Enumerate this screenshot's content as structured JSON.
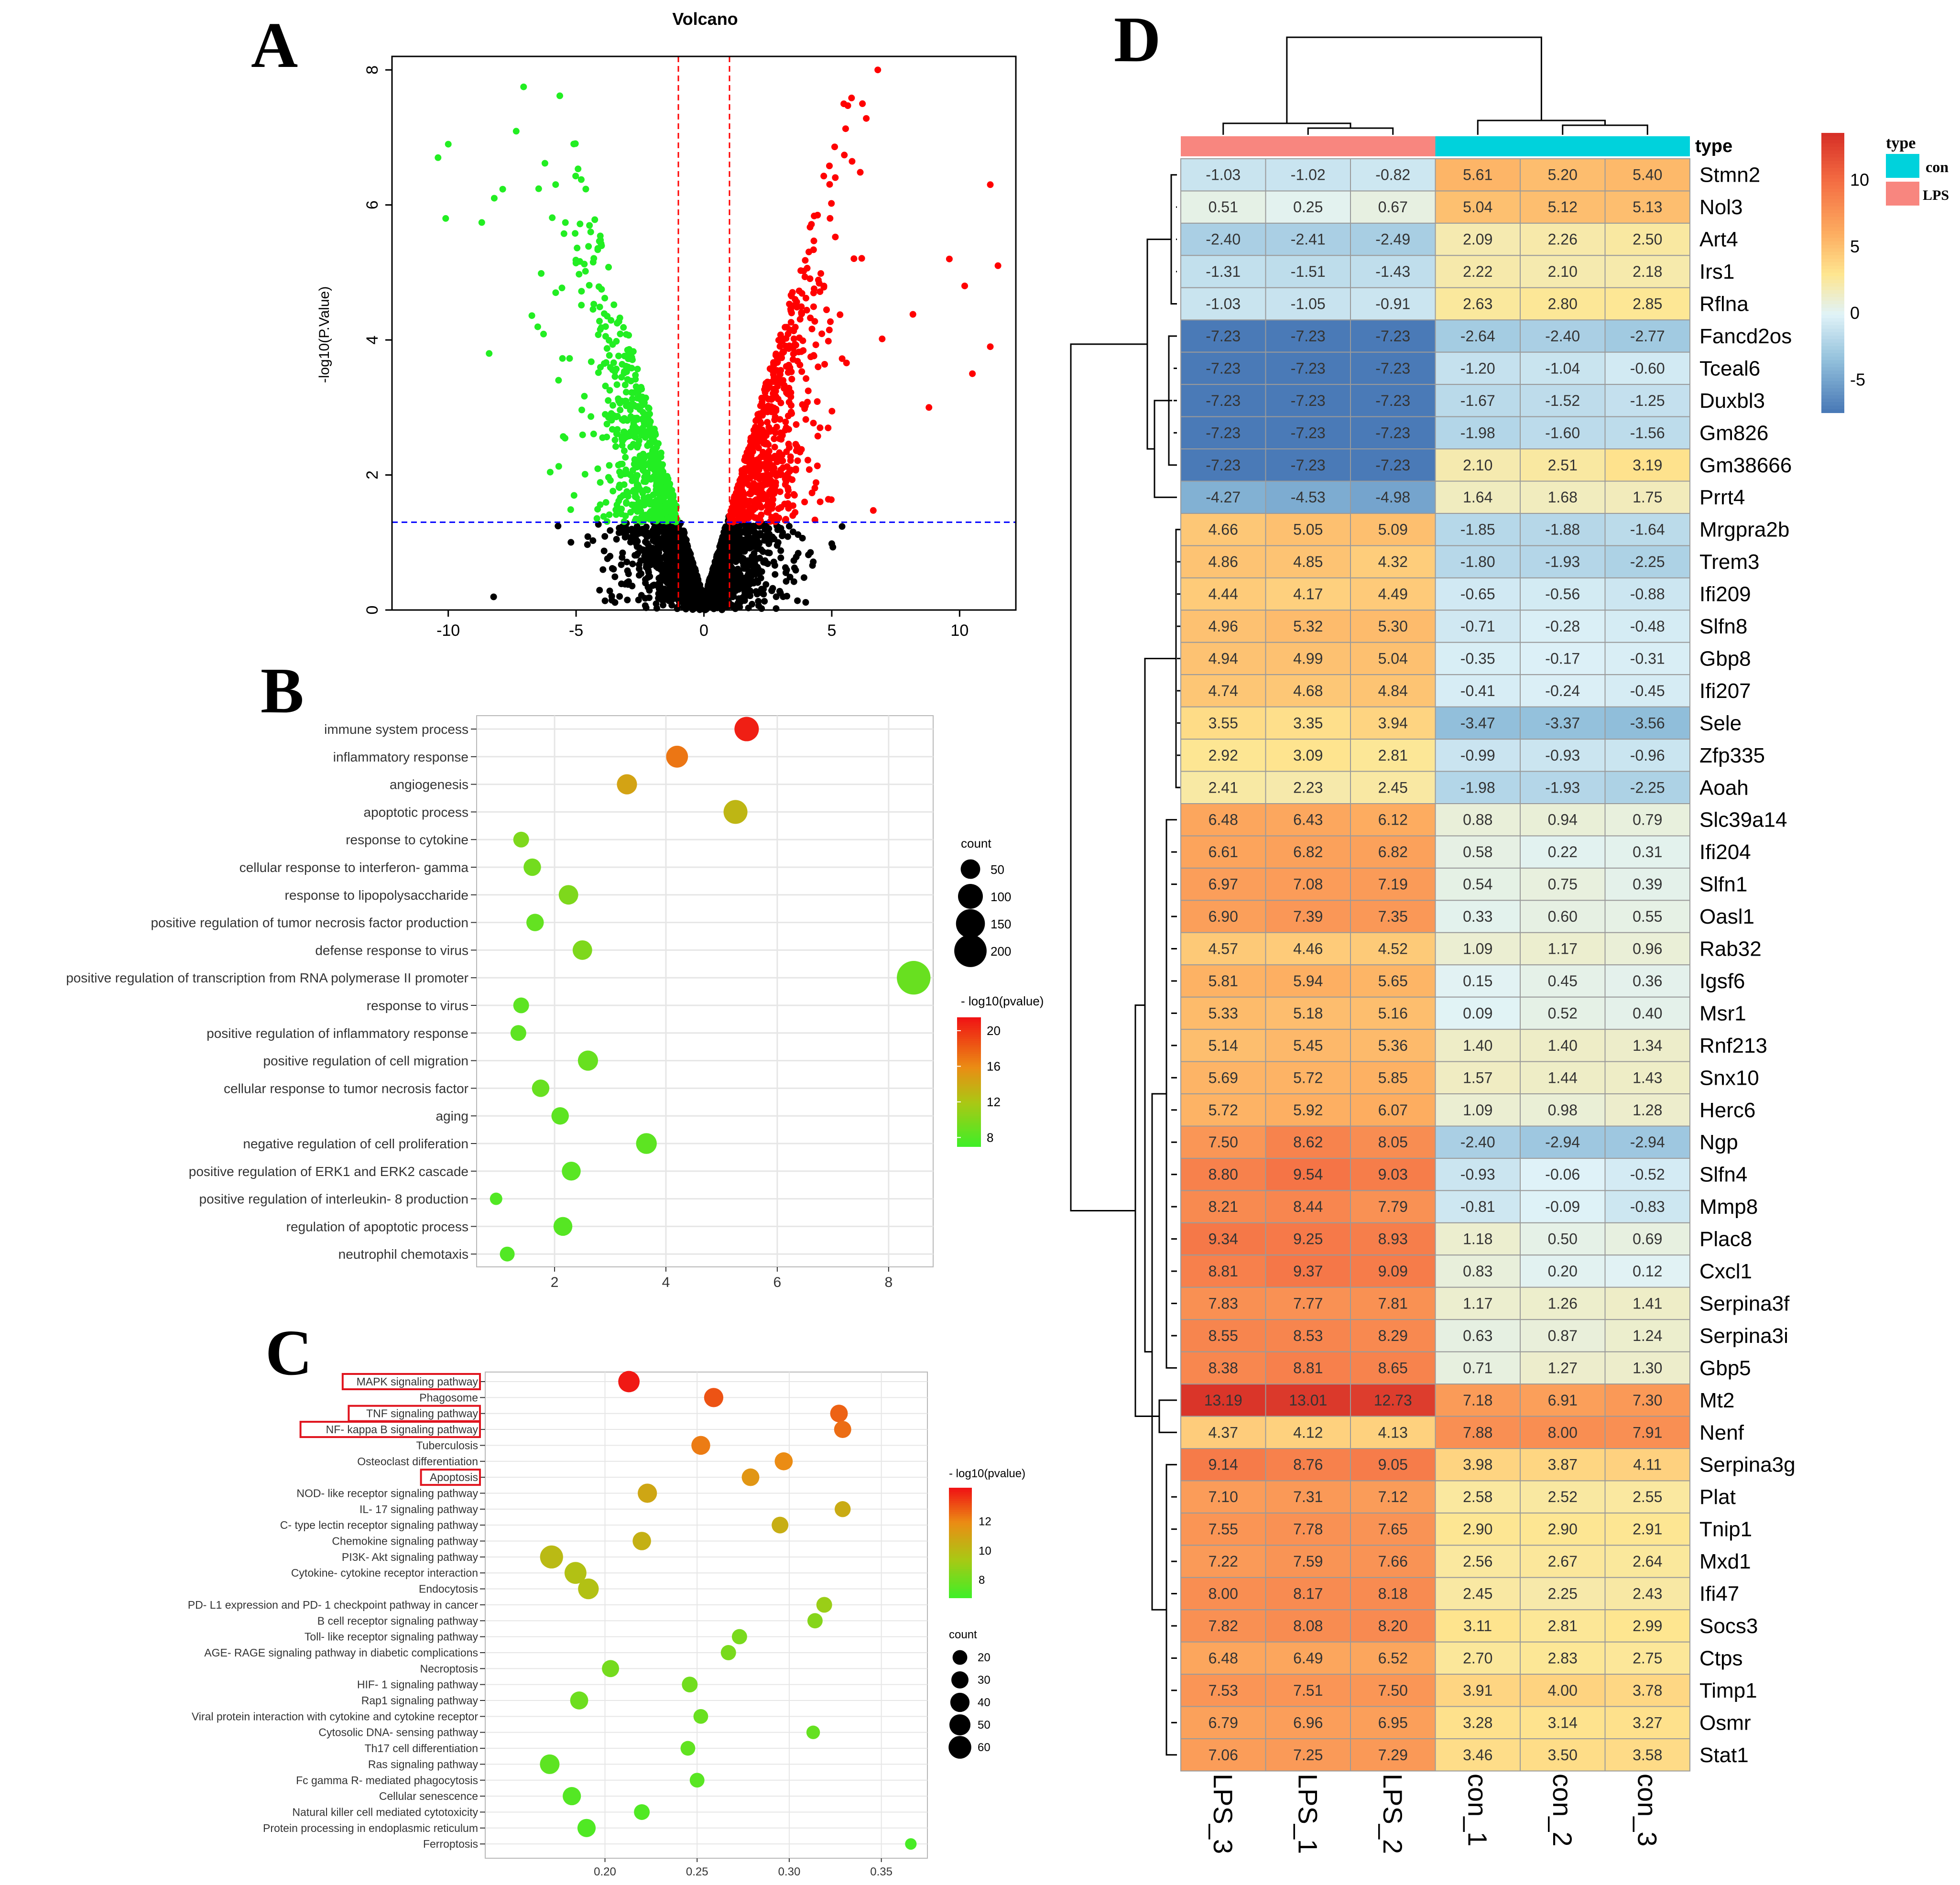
{
  "panels": {
    "a": {
      "letter": "A"
    },
    "b": {
      "letter": "B"
    },
    "c": {
      "letter": "C"
    },
    "d": {
      "letter": "D"
    }
  },
  "colors": {
    "up": "#ff0000",
    "down": "#22ee22",
    "ns": "#000000",
    "vline": "#ff0000",
    "hline": "#0000ff",
    "con": "#00d2dc",
    "lps": "#f8867f",
    "grid": "#e6e6e6",
    "panelBg": "#ffffff",
    "highlight": "#e0141e"
  },
  "chart_data": [
    {
      "id": "volcano",
      "type": "scatter",
      "title": "Volcano",
      "xlabel": "",
      "ylabel": "-log10(P.Value)",
      "xlim": [
        -12.2,
        12.2
      ],
      "ylim": [
        0,
        8.2
      ],
      "xticks": [
        -10,
        -5,
        0,
        5,
        10
      ],
      "yticks": [
        0,
        2,
        4,
        6,
        8
      ],
      "fc_threshold": [
        -1,
        1
      ],
      "p_threshold": 1.3,
      "series": [
        {
          "name": "down",
          "color": "#22ee22",
          "description": "log2FC < -1 and P < 0.05"
        },
        {
          "name": "up",
          "color": "#ff0000",
          "description": "log2FC > 1 and P < 0.05"
        },
        {
          "name": "ns",
          "color": "#000000",
          "description": "not significant"
        }
      ]
    },
    {
      "id": "go_bubble",
      "type": "scatter",
      "xlim": [
        0.6,
        8.8
      ],
      "xticks": [
        2,
        4,
        6,
        8
      ],
      "categories": [
        "immune system process",
        "inflammatory response",
        "angiogenesis",
        "apoptotic process",
        "response to cytokine",
        "cellular response to interferon- gamma",
        "response to lipopolysaccharide",
        "positive regulation of tumor necrosis factor production",
        "defense response to virus",
        "positive regulation of transcription from RNA polymerase II promoter",
        "response to virus",
        "positive regulation of inflammatory response",
        "positive regulation of cell migration",
        "cellular response to tumor necrosis factor",
        "aging",
        "negative regulation of cell proliferation",
        "positive regulation of ERK1 and ERK2 cascade",
        "positive regulation of interleukin- 8 production",
        "regulation of apoptotic process",
        "neutrophil chemotaxis"
      ],
      "x": [
        5.45,
        4.2,
        3.3,
        5.25,
        1.4,
        1.6,
        2.25,
        1.65,
        2.5,
        8.45,
        1.4,
        1.35,
        2.6,
        1.75,
        2.1,
        3.65,
        2.3,
        0.95,
        2.15,
        1.15
      ],
      "count": [
        95,
        70,
        55,
        90,
        25,
        35,
        50,
        35,
        50,
        220,
        25,
        25,
        55,
        35,
        35,
        60,
        45,
        10,
        45,
        20
      ],
      "neglog10p": [
        21,
        17,
        14.5,
        13.2,
        10,
        9.5,
        10,
        8.8,
        10,
        9,
        8.5,
        8.5,
        9,
        9,
        8.5,
        8.5,
        8.3,
        8,
        8.2,
        8
      ],
      "size_legend": {
        "title": "count",
        "values": [
          50,
          100,
          150,
          200
        ]
      },
      "color_legend": {
        "title": "- log10(pvalue)",
        "ticks": [
          8,
          12,
          16,
          20
        ],
        "range": [
          7,
          21.5
        ]
      }
    },
    {
      "id": "kegg_bubble",
      "type": "scatter",
      "xlim": [
        0.135,
        0.375
      ],
      "xticks": [
        0.2,
        0.25,
        0.3,
        0.35
      ],
      "xtick_labels": [
        "0.20",
        "0.25",
        "0.30",
        "0.35"
      ],
      "categories": [
        "MAPK signaling pathway",
        "Phagosome",
        "TNF signaling pathway",
        "NF- kappa B signaling pathway",
        "Tuberculosis",
        "Osteoclast differentiation",
        "Apoptosis",
        "NOD- like receptor signaling pathway",
        "IL- 17 signaling pathway",
        "C- type lectin receptor signaling pathway",
        "Chemokine signaling pathway",
        "PI3K- Akt signaling pathway",
        "Cytokine- cytokine receptor interaction",
        "Endocytosis",
        "PD- L1 expression and PD- 1 checkpoint pathway in cancer",
        "B cell receptor signaling pathway",
        "Toll- like receptor signaling pathway",
        "AGE- RAGE signaling pathway in diabetic complications",
        "Necroptosis",
        "HIF- 1 signaling pathway",
        "Rap1 signaling pathway",
        "Viral protein interaction with cytokine and cytokine receptor",
        "Cytosolic DNA- sensing pathway",
        "Th17 cell differentiation",
        "Ras signaling pathway",
        "Fc gamma R- mediated phagocytosis",
        "Cellular senescence",
        "Natural killer cell mediated cytotoxicity",
        "Protein processing in endoplasmic reticulum",
        "Ferroptosis"
      ],
      "highlighted": [
        "MAPK signaling pathway",
        "TNF signaling pathway",
        "NF- kappa B signaling pathway",
        "Apoptosis"
      ],
      "x": [
        0.213,
        0.259,
        0.327,
        0.329,
        0.252,
        0.297,
        0.279,
        0.223,
        0.329,
        0.295,
        0.22,
        0.171,
        0.184,
        0.191,
        0.319,
        0.314,
        0.273,
        0.267,
        0.203,
        0.246,
        0.186,
        0.252,
        0.313,
        0.245,
        0.17,
        0.25,
        0.182,
        0.22,
        0.19,
        0.366
      ],
      "count": [
        52,
        40,
        32,
        30,
        38,
        34,
        32,
        40,
        25,
        28,
        36,
        62,
        55,
        48,
        24,
        22,
        22,
        22,
        30,
        24,
        34,
        20,
        16,
        20,
        42,
        20,
        35,
        24,
        35,
        10
      ],
      "neglog10p": [
        14.2,
        13.1,
        12.8,
        12.6,
        12.3,
        12,
        11.6,
        10.9,
        10.7,
        10.6,
        10.5,
        10.1,
        9.8,
        9.8,
        9.1,
        8.6,
        8.3,
        8.3,
        8.2,
        8.1,
        8.0,
        7.9,
        7.8,
        7.7,
        7.6,
        7.5,
        7.4,
        7.3,
        7.3,
        7.1
      ],
      "size_legend": {
        "title": "count",
        "values": [
          20,
          30,
          40,
          50,
          60
        ]
      },
      "color_legend": {
        "title": "- log10(pvalue)",
        "ticks": [
          8,
          10,
          12
        ],
        "range": [
          6.8,
          14.3
        ]
      }
    },
    {
      "id": "heatmap",
      "type": "heatmap",
      "columns": [
        "LPS_3",
        "LPS_1",
        "LPS_2",
        "con_1",
        "con_2",
        "con_3"
      ],
      "column_types": [
        "LPS",
        "LPS",
        "LPS",
        "con",
        "con",
        "con"
      ],
      "annotation_title": "type",
      "legend": {
        "ticks": [
          10,
          5,
          0,
          -5
        ],
        "range": [
          -7.5,
          13.5
        ],
        "type_title": "type",
        "type_labels": [
          "con",
          "LPS"
        ]
      },
      "rows": [
        "Stmn2",
        "Nol3",
        "Art4",
        "Irs1",
        "Rflna",
        "Fancd2os",
        "Tceal6",
        "Duxbl3",
        "Gm826",
        "Gm38666",
        "Prrt4",
        "Mrgpra2b",
        "Trem3",
        "Ifi209",
        "Slfn8",
        "Gbp8",
        "Ifi207",
        "Sele",
        "Zfp335",
        "Aoah",
        "Slc39a14",
        "Ifi204",
        "Slfn1",
        "Oasl1",
        "Rab32",
        "Igsf6",
        "Msr1",
        "Rnf213",
        "Snx10",
        "Herc6",
        "Ngp",
        "Slfn4",
        "Mmp8",
        "Plac8",
        "Cxcl1",
        "Serpina3f",
        "Serpina3i",
        "Gbp5",
        "Mt2",
        "Nenf",
        "Serpina3g",
        "Plat",
        "Tnip1",
        "Mxd1",
        "Ifi47",
        "Socs3",
        "Ctps",
        "Timp1",
        "Osmr",
        "Stat1"
      ],
      "values": [
        [
          "-1.03",
          "-1.02",
          "-0.82",
          "5.61",
          "5.20",
          "5.40"
        ],
        [
          "0.51",
          "0.25",
          "0.67",
          "5.04",
          "5.12",
          "5.13"
        ],
        [
          "-2.40",
          "-2.41",
          "-2.49",
          "2.09",
          "2.26",
          "2.50"
        ],
        [
          "-1.31",
          "-1.51",
          "-1.43",
          "2.22",
          "2.10",
          "2.18"
        ],
        [
          "-1.03",
          "-1.05",
          "-0.91",
          "2.63",
          "2.80",
          "2.85"
        ],
        [
          "-7.23",
          "-7.23",
          "-7.23",
          "-2.64",
          "-2.40",
          "-2.77"
        ],
        [
          "-7.23",
          "-7.23",
          "-7.23",
          "-1.20",
          "-1.04",
          "-0.60"
        ],
        [
          "-7.23",
          "-7.23",
          "-7.23",
          "-1.67",
          "-1.52",
          "-1.25"
        ],
        [
          "-7.23",
          "-7.23",
          "-7.23",
          "-1.98",
          "-1.60",
          "-1.56"
        ],
        [
          "-7.23",
          "-7.23",
          "-7.23",
          "2.10",
          "2.51",
          "3.19"
        ],
        [
          "-4.27",
          "-4.53",
          "-4.98",
          "1.64",
          "1.68",
          "1.75"
        ],
        [
          "4.66",
          "5.05",
          "5.09",
          "-1.85",
          "-1.88",
          "-1.64"
        ],
        [
          "4.86",
          "4.85",
          "4.32",
          "-1.80",
          "-1.93",
          "-2.25"
        ],
        [
          "4.44",
          "4.17",
          "4.49",
          "-0.65",
          "-0.56",
          "-0.88"
        ],
        [
          "4.96",
          "5.32",
          "5.30",
          "-0.71",
          "-0.28",
          "-0.48"
        ],
        [
          "4.94",
          "4.99",
          "5.04",
          "-0.35",
          "-0.17",
          "-0.31"
        ],
        [
          "4.74",
          "4.68",
          "4.84",
          "-0.41",
          "-0.24",
          "-0.45"
        ],
        [
          "3.55",
          "3.35",
          "3.94",
          "-3.47",
          "-3.37",
          "-3.56"
        ],
        [
          "2.92",
          "3.09",
          "2.81",
          "-0.99",
          "-0.93",
          "-0.96"
        ],
        [
          "2.41",
          "2.23",
          "2.45",
          "-1.98",
          "-1.93",
          "-2.25"
        ],
        [
          "6.48",
          "6.43",
          "6.12",
          "0.88",
          "0.94",
          "0.79"
        ],
        [
          "6.61",
          "6.82",
          "6.82",
          "0.58",
          "0.22",
          "0.31"
        ],
        [
          "6.97",
          "7.08",
          "7.19",
          "0.54",
          "0.75",
          "0.39"
        ],
        [
          "6.90",
          "7.39",
          "7.35",
          "0.33",
          "0.60",
          "0.55"
        ],
        [
          "4.57",
          "4.46",
          "4.52",
          "1.09",
          "1.17",
          "0.96"
        ],
        [
          "5.81",
          "5.94",
          "5.65",
          "0.15",
          "0.45",
          "0.36"
        ],
        [
          "5.33",
          "5.18",
          "5.16",
          "0.09",
          "0.52",
          "0.40"
        ],
        [
          "5.14",
          "5.45",
          "5.36",
          "1.40",
          "1.40",
          "1.34"
        ],
        [
          "5.69",
          "5.72",
          "5.85",
          "1.57",
          "1.44",
          "1.43"
        ],
        [
          "5.72",
          "5.92",
          "6.07",
          "1.09",
          "0.98",
          "1.28"
        ],
        [
          "7.50",
          "8.62",
          "8.05",
          "-2.40",
          "-2.94",
          "-2.94"
        ],
        [
          "8.80",
          "9.54",
          "9.03",
          "-0.93",
          "-0.06",
          "-0.52"
        ],
        [
          "8.21",
          "8.44",
          "7.79",
          "-0.81",
          "-0.09",
          "-0.83"
        ],
        [
          "9.34",
          "9.25",
          "8.93",
          "1.18",
          "0.50",
          "0.69"
        ],
        [
          "8.81",
          "9.37",
          "9.09",
          "0.83",
          "0.20",
          "0.12"
        ],
        [
          "7.83",
          "7.77",
          "7.81",
          "1.17",
          "1.26",
          "1.41"
        ],
        [
          "8.55",
          "8.53",
          "8.29",
          "0.63",
          "0.87",
          "1.24"
        ],
        [
          "8.38",
          "8.81",
          "8.65",
          "0.71",
          "1.27",
          "1.30"
        ],
        [
          "13.19",
          "13.01",
          "12.73",
          "7.18",
          "6.91",
          "7.30"
        ],
        [
          "4.37",
          "4.12",
          "4.13",
          "7.88",
          "8.00",
          "7.91"
        ],
        [
          "9.14",
          "8.76",
          "9.05",
          "3.98",
          "3.87",
          "4.11"
        ],
        [
          "7.10",
          "7.31",
          "7.12",
          "2.58",
          "2.52",
          "2.55"
        ],
        [
          "7.55",
          "7.78",
          "7.65",
          "2.90",
          "2.90",
          "2.91"
        ],
        [
          "7.22",
          "7.59",
          "7.66",
          "2.56",
          "2.67",
          "2.64"
        ],
        [
          "8.00",
          "8.17",
          "8.18",
          "2.45",
          "2.25",
          "2.43"
        ],
        [
          "7.82",
          "8.08",
          "8.20",
          "3.11",
          "2.81",
          "2.99"
        ],
        [
          "6.48",
          "6.49",
          "6.52",
          "2.70",
          "2.83",
          "2.75"
        ],
        [
          "7.53",
          "7.51",
          "7.50",
          "3.91",
          "4.00",
          "3.78"
        ],
        [
          "6.79",
          "6.96",
          "6.95",
          "3.28",
          "3.14",
          "3.27"
        ],
        [
          "7.06",
          "7.25",
          "7.29",
          "3.46",
          "3.50",
          "3.58"
        ]
      ]
    }
  ]
}
